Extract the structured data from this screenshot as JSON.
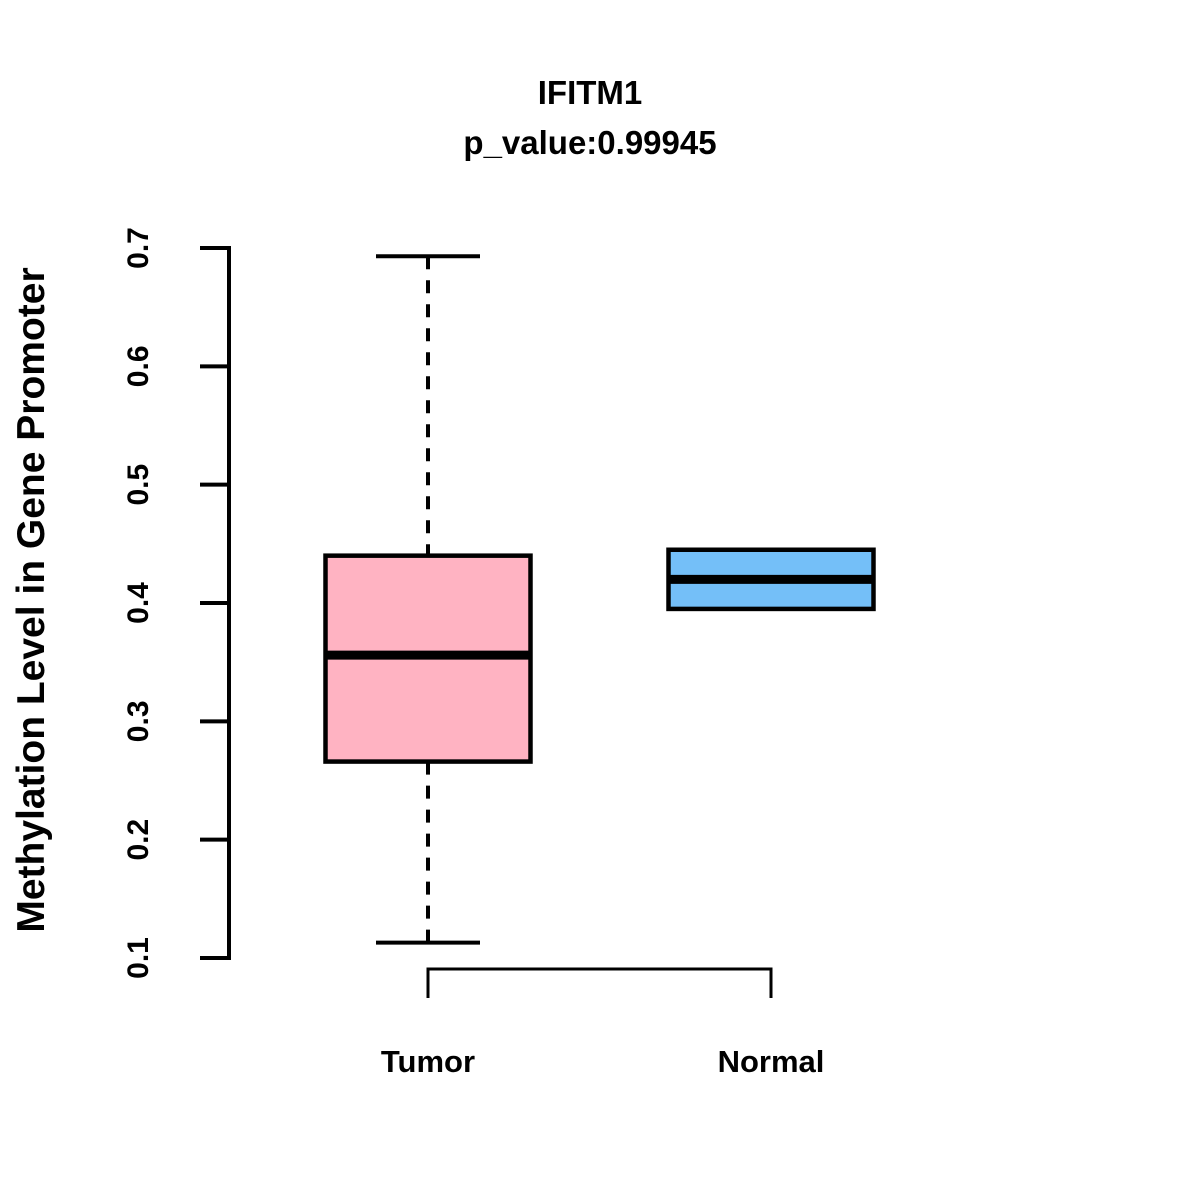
{
  "header": {
    "title": "IFITM1",
    "subtitle": "p_value:0.99945"
  },
  "chart_data": {
    "type": "boxplot",
    "title": "IFITM1",
    "subtitle": "p_value:0.99945",
    "ylabel": "Methylation Level in Gene Promoter",
    "xlabel": "",
    "ylim": [
      0.1,
      0.7
    ],
    "yticks": [
      "0.1",
      "0.2",
      "0.3",
      "0.4",
      "0.5",
      "0.6",
      "0.7"
    ],
    "ytick_values": [
      0.1,
      0.2,
      0.3,
      0.4,
      0.5,
      0.6,
      0.7
    ],
    "grid": false,
    "legend": "none",
    "categories": [
      "Tumor",
      "Normal"
    ],
    "series": [
      {
        "name": "Tumor",
        "fill_color": "#FFB3C2",
        "whisker_low": 0.113,
        "q1": 0.266,
        "median": 0.356,
        "q3": 0.44,
        "whisker_high": 0.693
      },
      {
        "name": "Normal",
        "fill_color": "#74BFF8",
        "whisker_low": 0.395,
        "q1": 0.395,
        "median": 0.42,
        "q3": 0.445,
        "whisker_high": 0.445
      }
    ],
    "line_color": "#000000",
    "whisker_line_style": "dashed"
  }
}
